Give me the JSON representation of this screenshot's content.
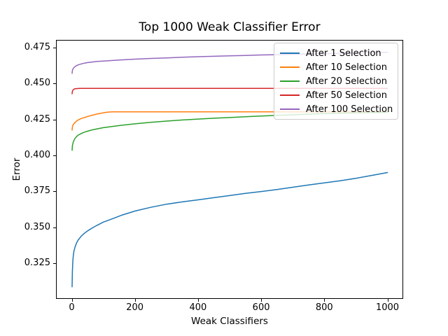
{
  "chart_data": {
    "type": "line",
    "title": "Top 1000 Weak Classifier Error",
    "xlabel": "Weak Classifiers",
    "ylabel": "Error",
    "xlim": [
      -50,
      1050
    ],
    "ylim": [
      0.3,
      0.48
    ],
    "xticks": [
      0,
      200,
      400,
      600,
      800,
      1000
    ],
    "xtick_labels": [
      "0",
      "200",
      "400",
      "600",
      "800",
      "1000"
    ],
    "yticks": [
      0.475,
      0.45,
      0.425,
      0.4,
      0.375,
      0.35,
      0.325
    ],
    "ytick_labels": [
      "0.475",
      "0.450",
      "0.425",
      "0.400",
      "0.375",
      "0.350",
      "0.325"
    ],
    "grid": false,
    "legend_position": "upper right",
    "background_color": "#ffffff",
    "axis_color": "#000000",
    "legend_border_color": "#cccccc",
    "series": [
      {
        "name": "After 1 Selection",
        "color": "#1f77b4",
        "points": [
          [
            1,
            0.3085
          ],
          [
            2,
            0.319
          ],
          [
            3,
            0.3245
          ],
          [
            4,
            0.328
          ],
          [
            5,
            0.3305
          ],
          [
            7,
            0.3335
          ],
          [
            10,
            0.336
          ],
          [
            15,
            0.339
          ],
          [
            20,
            0.341
          ],
          [
            30,
            0.3438
          ],
          [
            40,
            0.3458
          ],
          [
            50,
            0.3474
          ],
          [
            65,
            0.3495
          ],
          [
            80,
            0.3513
          ],
          [
            100,
            0.3535
          ],
          [
            120,
            0.3552
          ],
          [
            140,
            0.3568
          ],
          [
            160,
            0.3585
          ],
          [
            180,
            0.3598
          ],
          [
            200,
            0.3612
          ],
          [
            250,
            0.3638
          ],
          [
            300,
            0.366
          ],
          [
            350,
            0.3676
          ],
          [
            400,
            0.369
          ],
          [
            450,
            0.3705
          ],
          [
            500,
            0.372
          ],
          [
            550,
            0.3735
          ],
          [
            600,
            0.3748
          ],
          [
            650,
            0.3762
          ],
          [
            700,
            0.3778
          ],
          [
            750,
            0.3794
          ],
          [
            800,
            0.3808
          ],
          [
            850,
            0.3823
          ],
          [
            900,
            0.384
          ],
          [
            950,
            0.386
          ],
          [
            1000,
            0.388
          ]
        ]
      },
      {
        "name": "After 10 Selection",
        "color": "#ff7f0e",
        "points": [
          [
            1,
            0.4175
          ],
          [
            2,
            0.4196
          ],
          [
            3,
            0.4206
          ],
          [
            5,
            0.4215
          ],
          [
            8,
            0.4223
          ],
          [
            10,
            0.4228
          ],
          [
            15,
            0.4238
          ],
          [
            20,
            0.4246
          ],
          [
            30,
            0.4256
          ],
          [
            40,
            0.4263
          ],
          [
            50,
            0.427
          ],
          [
            65,
            0.4279
          ],
          [
            80,
            0.4287
          ],
          [
            100,
            0.4296
          ],
          [
            115,
            0.4301
          ],
          [
            130,
            0.4303
          ],
          [
            150,
            0.4303
          ],
          [
            200,
            0.4303
          ],
          [
            300,
            0.4303
          ],
          [
            400,
            0.4303
          ],
          [
            500,
            0.4303
          ],
          [
            600,
            0.4303
          ],
          [
            700,
            0.4303
          ],
          [
            800,
            0.4303
          ],
          [
            900,
            0.4303
          ],
          [
            1000,
            0.4303
          ]
        ]
      },
      {
        "name": "After 20 Selection",
        "color": "#2ca02c",
        "points": [
          [
            1,
            0.4035
          ],
          [
            2,
            0.4063
          ],
          [
            3,
            0.4078
          ],
          [
            5,
            0.4094
          ],
          [
            8,
            0.4109
          ],
          [
            10,
            0.4117
          ],
          [
            15,
            0.413
          ],
          [
            20,
            0.414
          ],
          [
            30,
            0.4152
          ],
          [
            40,
            0.4161
          ],
          [
            50,
            0.4168
          ],
          [
            65,
            0.4177
          ],
          [
            80,
            0.4184
          ],
          [
            100,
            0.4192
          ],
          [
            150,
            0.4207
          ],
          [
            200,
            0.4219
          ],
          [
            250,
            0.4229
          ],
          [
            300,
            0.4238
          ],
          [
            350,
            0.4246
          ],
          [
            400,
            0.4252
          ],
          [
            450,
            0.4258
          ],
          [
            500,
            0.4263
          ],
          [
            550,
            0.4268
          ],
          [
            600,
            0.4273
          ],
          [
            650,
            0.4278
          ],
          [
            700,
            0.4282
          ],
          [
            750,
            0.4286
          ],
          [
            800,
            0.429
          ],
          [
            850,
            0.4293
          ],
          [
            900,
            0.4295
          ],
          [
            950,
            0.4297
          ],
          [
            1000,
            0.4299
          ]
        ]
      },
      {
        "name": "After 50 Selection",
        "color": "#d62728",
        "points": [
          [
            1,
            0.4428
          ],
          [
            2,
            0.4444
          ],
          [
            3,
            0.4451
          ],
          [
            5,
            0.4457
          ],
          [
            8,
            0.4461
          ],
          [
            10,
            0.4463
          ],
          [
            15,
            0.4464
          ],
          [
            20,
            0.4465
          ],
          [
            30,
            0.4466
          ],
          [
            50,
            0.4466
          ],
          [
            100,
            0.4466
          ],
          [
            200,
            0.4466
          ],
          [
            300,
            0.4466
          ],
          [
            400,
            0.4466
          ],
          [
            500,
            0.4466
          ],
          [
            600,
            0.4466
          ],
          [
            700,
            0.4466
          ],
          [
            800,
            0.4466
          ],
          [
            900,
            0.4466
          ],
          [
            1000,
            0.4466
          ]
        ]
      },
      {
        "name": "After 100 Selection",
        "color": "#9467bd",
        "points": [
          [
            1,
            0.457
          ],
          [
            2,
            0.4588
          ],
          [
            3,
            0.4597
          ],
          [
            5,
            0.4606
          ],
          [
            8,
            0.4613
          ],
          [
            10,
            0.4617
          ],
          [
            15,
            0.4624
          ],
          [
            20,
            0.4629
          ],
          [
            30,
            0.4636
          ],
          [
            40,
            0.4641
          ],
          [
            50,
            0.4645
          ],
          [
            65,
            0.4649
          ],
          [
            80,
            0.4653
          ],
          [
            100,
            0.4656
          ],
          [
            150,
            0.4663
          ],
          [
            200,
            0.4669
          ],
          [
            250,
            0.4674
          ],
          [
            300,
            0.4678
          ],
          [
            350,
            0.4682
          ],
          [
            400,
            0.4686
          ],
          [
            450,
            0.4689
          ],
          [
            500,
            0.4692
          ],
          [
            550,
            0.4695
          ],
          [
            600,
            0.4698
          ],
          [
            650,
            0.47
          ],
          [
            700,
            0.4703
          ],
          [
            750,
            0.4705
          ],
          [
            800,
            0.4707
          ],
          [
            850,
            0.471
          ],
          [
            900,
            0.4712
          ],
          [
            950,
            0.4714
          ],
          [
            1000,
            0.4716
          ]
        ]
      }
    ]
  }
}
